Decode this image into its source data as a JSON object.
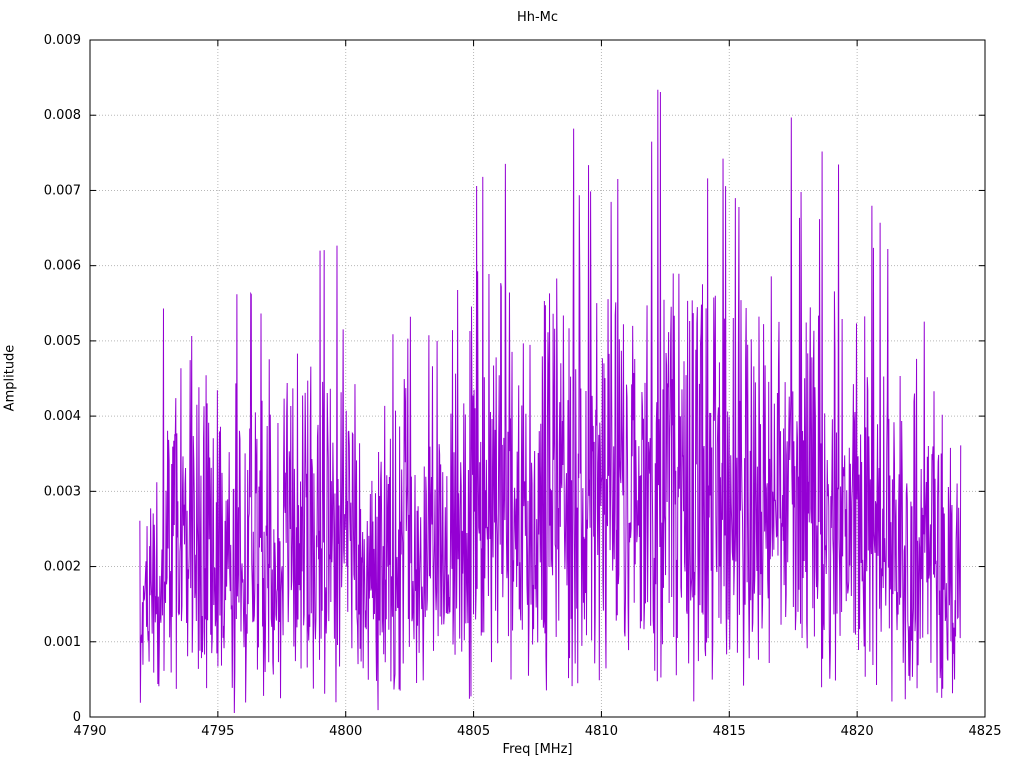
{
  "chart_data": {
    "type": "line",
    "title": "Hh-Mc",
    "xlabel": "Freq [MHz]",
    "ylabel": "Amplitude",
    "xlim": [
      4790,
      4825
    ],
    "ylim": [
      0,
      0.009
    ],
    "xticks": [
      4790,
      4795,
      4800,
      4805,
      4810,
      4815,
      4820,
      4825
    ],
    "xtick_labels": [
      "4790",
      "4795",
      "4800",
      "4805",
      "4810",
      "4815",
      "4820",
      "4825"
    ],
    "yticks": [
      0,
      0.001,
      0.002,
      0.003,
      0.004,
      0.005,
      0.006,
      0.007,
      0.008,
      0.009
    ],
    "ytick_labels": [
      "0",
      "0.001",
      "0.002",
      "0.003",
      "0.004",
      "0.005",
      "0.006",
      "0.007",
      "0.008",
      "0.009"
    ],
    "grid": true,
    "grid_color": "#b8b8b8",
    "axis_color": "#000000",
    "line_color": "#9400d3",
    "legend": "none",
    "series": [
      {
        "name": "Hh-Mc",
        "description": "dense noisy amplitude spectrum rendered as connected impulses",
        "x_start": 4791.95,
        "x_end": 4824.05,
        "n_points": 1600,
        "seed": 7,
        "noise_model": "rayleigh",
        "sigma_fraction_of_envelope": 0.3125,
        "envelope_x_start": 4792,
        "envelope_x_step": 1,
        "envelope_peak": [
          0.0028,
          0.0061,
          0.007,
          0.0053,
          0.0058,
          0.0052,
          0.0064,
          0.0062,
          0.0063,
          0.005,
          0.006,
          0.0056,
          0.0054,
          0.007,
          0.0075,
          0.0069,
          0.007,
          0.0079,
          0.0076,
          0.0069,
          0.0084,
          0.0081,
          0.0078,
          0.0073,
          0.0063,
          0.0078,
          0.0082,
          0.0074,
          0.0072,
          0.0065,
          0.0051,
          0.0054,
          0.0038
        ],
        "typical_mean_amplitude": 0.0028,
        "max_amplitude": 0.0084,
        "min_amplitude": 0.0001
      }
    ]
  }
}
